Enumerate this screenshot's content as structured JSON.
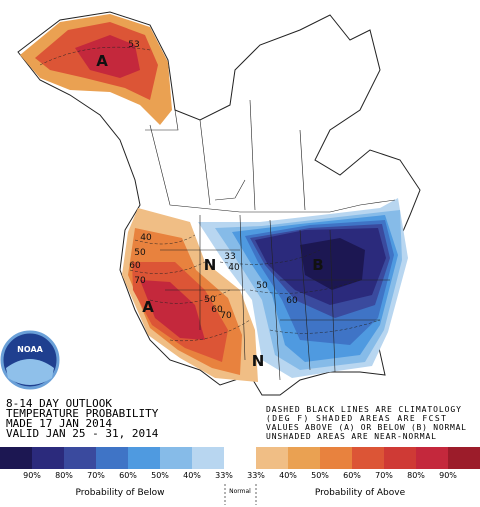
{
  "logo": "NOAA",
  "outlook": [
    "8-14 DAY OUTLOOK",
    "TEMPERATURE PROBABILITY",
    "MADE  17 JAN 2014",
    "VALID  JAN 25 - 31, 2014"
  ],
  "notes": [
    "DASHED BLACK LINES ARE CLIMATOLOGY",
    "(DEG F) SHADED AREAS ARE FCST",
    "VALUES ABOVE (A) OR BELOW (B) NORMAL",
    "UNSHADED AREAS ARE NEAR-NORMAL"
  ],
  "map_labels": [
    "A",
    "A",
    "B",
    "N",
    "N",
    "53",
    "40",
    "50",
    "60",
    "70",
    "33",
    "40",
    "50",
    "60",
    "70",
    "50",
    "60"
  ],
  "legend": {
    "below": [
      {
        "label": "90%",
        "color": "#1c1752"
      },
      {
        "label": "80%",
        "color": "#2b2a7c"
      },
      {
        "label": "70%",
        "color": "#3a4a9e"
      },
      {
        "label": "60%",
        "color": "#3f74c6"
      },
      {
        "label": "50%",
        "color": "#4f9ae0"
      },
      {
        "label": "40%",
        "color": "#86bbe8"
      },
      {
        "label": "33%",
        "color": "#b8d6f0"
      }
    ],
    "normal_color": "#ffffff",
    "above": [
      {
        "label": "33%",
        "color": "#f0be85"
      },
      {
        "label": "40%",
        "color": "#eaa152"
      },
      {
        "label": "50%",
        "color": "#e8823e"
      },
      {
        "label": "60%",
        "color": "#dc5536"
      },
      {
        "label": "70%",
        "color": "#cf3a35"
      },
      {
        "label": "80%",
        "color": "#c4283c"
      },
      {
        "label": "90%",
        "color": "#9c1c2a"
      }
    ],
    "below_caption": "Probability of Below",
    "normal_caption": "Normal",
    "above_caption": "Probability of Above"
  }
}
